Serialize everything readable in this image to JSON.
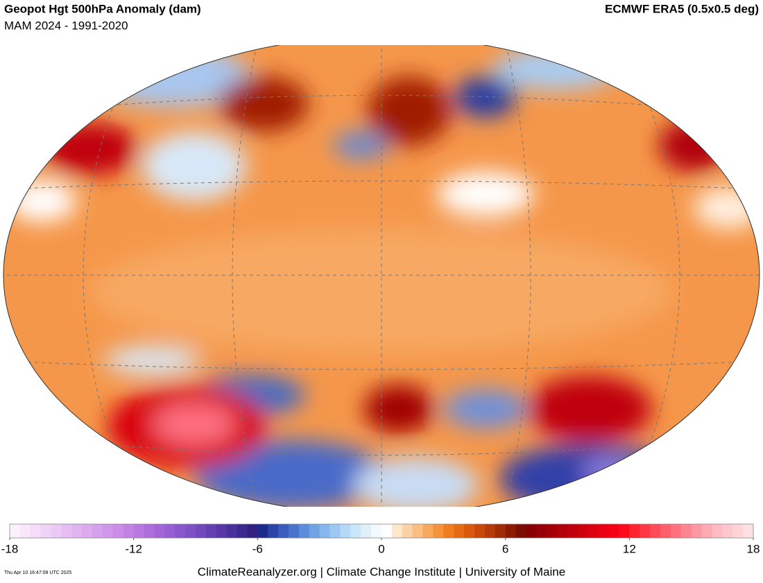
{
  "header": {
    "title": "Geopot Hgt 500hPa Anomaly (dam)",
    "subtitle": "MAM 2024 - 1991-2020",
    "source": "ECMWF ERA5 (0.5x0.5 deg)"
  },
  "colorbar": {
    "lim": [
      -18,
      18
    ],
    "ticks": [
      -18,
      -12,
      -6,
      0,
      6,
      12,
      18
    ],
    "colors": [
      "#fdf0fd",
      "#f9e6fb",
      "#f5dcf9",
      "#f0d2f7",
      "#ebc8f5",
      "#e6bef3",
      "#e0b4f1",
      "#dbaaef",
      "#d5a0ed",
      "#cf96ea",
      "#c98ce7",
      "#c282e4",
      "#b878e0",
      "#ad6edc",
      "#a266d8",
      "#965fd3",
      "#8a58cd",
      "#7e52c6",
      "#7149bd",
      "#6440b2",
      "#5738a6",
      "#4a309a",
      "#3d288e",
      "#302080",
      "#1c2a8c",
      "#2a44a8",
      "#3a5cbc",
      "#4a74cc",
      "#5c8cda",
      "#70a2e4",
      "#86b6ec",
      "#9cc8f2",
      "#b4d8f6",
      "#cae6f9",
      "#dff0fb",
      "#f4f9fd",
      "#ffffff",
      "#fde6cc",
      "#fbd2a6",
      "#f9be80",
      "#f7a85c",
      "#f5923a",
      "#f07c20",
      "#e66a14",
      "#d8580e",
      "#c8480a",
      "#b43a08",
      "#a02c06",
      "#8a1c04",
      "#7a0e02",
      "#880004",
      "#960006",
      "#a40008",
      "#b2000a",
      "#c0000c",
      "#ce000e",
      "#dc0010",
      "#ea0012",
      "#f70014",
      "#ff0a1a",
      "#ff2230",
      "#ff3644",
      "#ff4a58",
      "#ff5e6a",
      "#ff727e",
      "#ff8690",
      "#ff98a2",
      "#ffaab2",
      "#ffbac2",
      "#ffc8ce",
      "#ffd4d8",
      "#ffe0e4"
    ]
  },
  "footer": {
    "credits": "ClimateReanalyzer.org | Climate Change Institute | University of Maine",
    "timestamp": "Thu Apr 10 16:47:08 UTC 2025"
  }
}
